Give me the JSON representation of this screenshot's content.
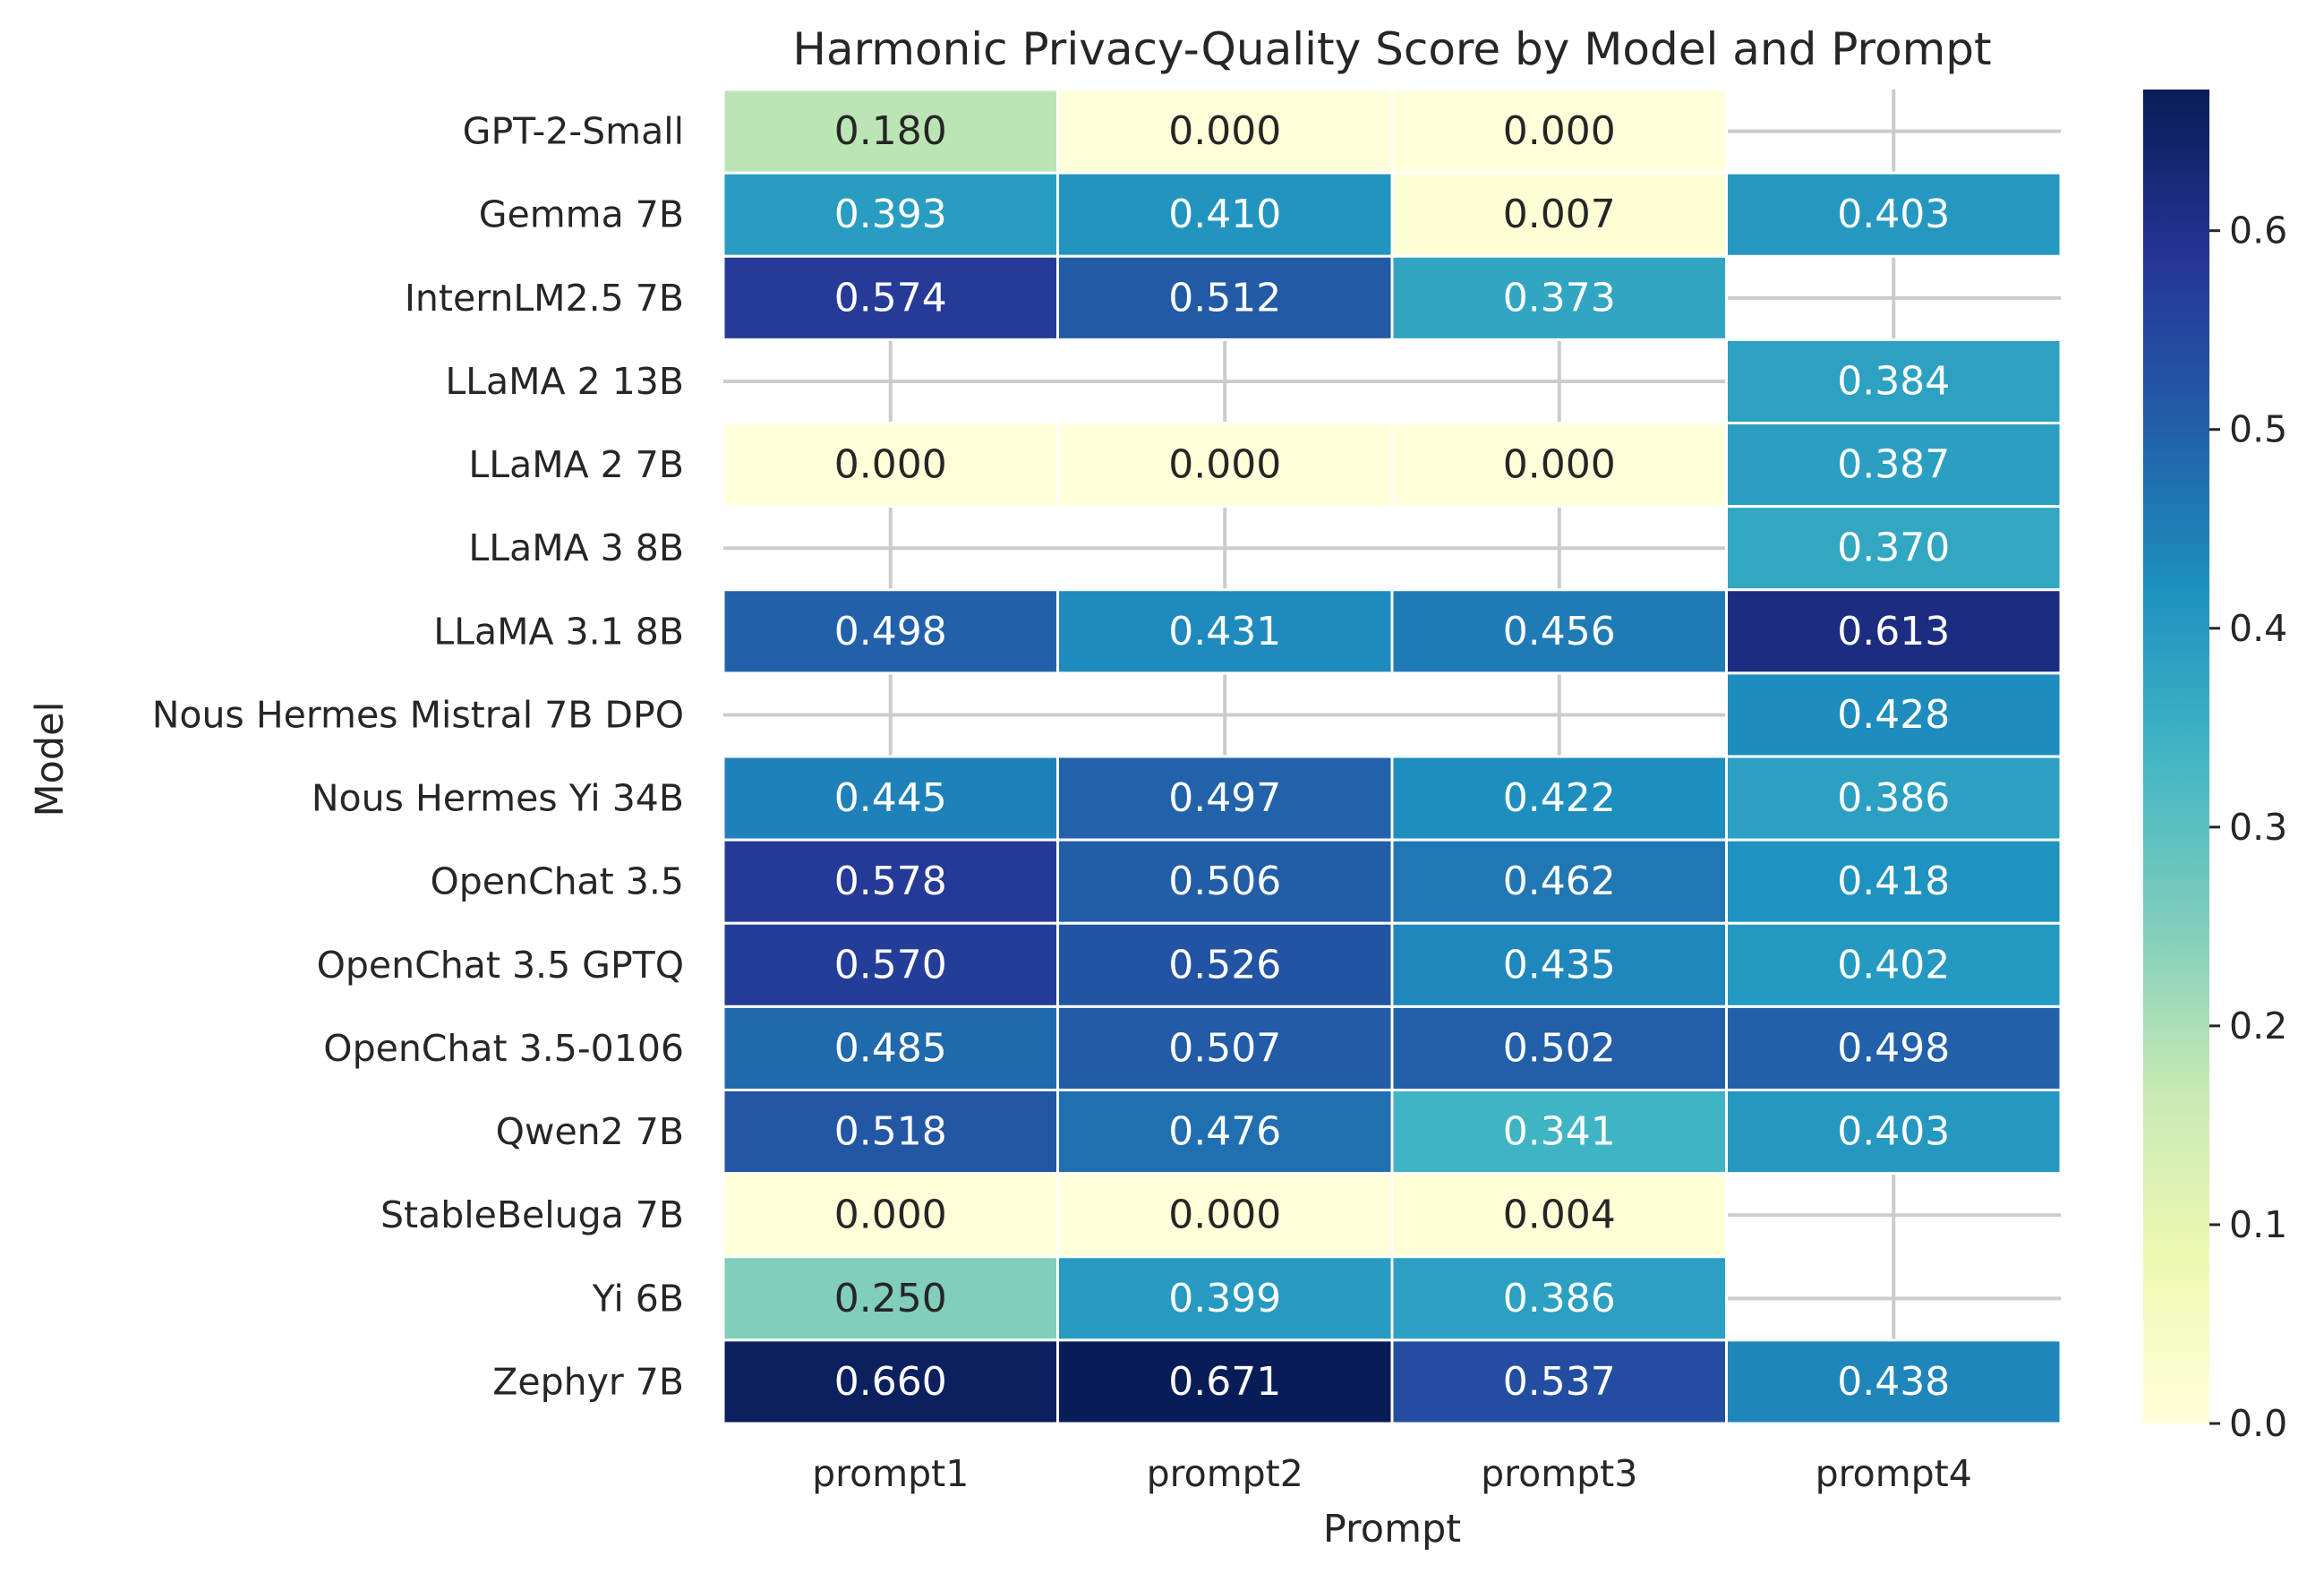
{
  "chart_data": {
    "type": "heatmap",
    "title": "Harmonic Privacy-Quality Score by Model and Prompt",
    "xlabel": "Prompt",
    "ylabel": "Model",
    "x_categories": [
      "prompt1",
      "prompt2",
      "prompt3",
      "prompt4"
    ],
    "y_categories": [
      "GPT-2-Small",
      "Gemma 7B",
      "InternLM2.5 7B",
      "LLaMA 2 13B",
      "LLaMA 2 7B",
      "LLaMA 3 8B",
      "LLaMA 3.1 8B",
      "Nous Hermes Mistral 7B DPO",
      "Nous Hermes Yi 34B",
      "OpenChat 3.5",
      "OpenChat 3.5 GPTQ",
      "OpenChat 3.5-0106",
      "Qwen2 7B",
      "StableBeluga 7B",
      "Yi 6B",
      "Zephyr 7B"
    ],
    "values": [
      [
        0.18,
        0.0,
        0.0,
        null
      ],
      [
        0.393,
        0.41,
        0.007,
        0.403
      ],
      [
        0.574,
        0.512,
        0.373,
        null
      ],
      [
        null,
        null,
        null,
        0.384
      ],
      [
        0.0,
        0.0,
        0.0,
        0.387
      ],
      [
        null,
        null,
        null,
        0.37
      ],
      [
        0.498,
        0.431,
        0.456,
        0.613
      ],
      [
        null,
        null,
        null,
        0.428
      ],
      [
        0.445,
        0.497,
        0.422,
        0.386
      ],
      [
        0.578,
        0.506,
        0.462,
        0.418
      ],
      [
        0.57,
        0.526,
        0.435,
        0.402
      ],
      [
        0.485,
        0.507,
        0.502,
        0.498
      ],
      [
        0.518,
        0.476,
        0.341,
        0.403
      ],
      [
        0.0,
        0.0,
        0.004,
        null
      ],
      [
        0.25,
        0.399,
        0.386,
        null
      ],
      [
        0.66,
        0.671,
        0.537,
        0.438
      ]
    ],
    "value_labels": [
      [
        "0.180",
        "0.000",
        "0.000",
        null
      ],
      [
        "0.393",
        "0.410",
        "0.007",
        "0.403"
      ],
      [
        "0.574",
        "0.512",
        "0.373",
        null
      ],
      [
        null,
        null,
        null,
        "0.384"
      ],
      [
        "0.000",
        "0.000",
        "0.000",
        "0.387"
      ],
      [
        null,
        null,
        null,
        "0.370"
      ],
      [
        "0.498",
        "0.431",
        "0.456",
        "0.613"
      ],
      [
        null,
        null,
        null,
        "0.428"
      ],
      [
        "0.445",
        "0.497",
        "0.422",
        "0.386"
      ],
      [
        "0.578",
        "0.506",
        "0.462",
        "0.418"
      ],
      [
        "0.570",
        "0.526",
        "0.435",
        "0.402"
      ],
      [
        "0.485",
        "0.507",
        "0.502",
        "0.498"
      ],
      [
        "0.518",
        "0.476",
        "0.341",
        "0.403"
      ],
      [
        "0.000",
        "0.000",
        "0.004",
        null
      ],
      [
        "0.250",
        "0.399",
        "0.386",
        null
      ],
      [
        "0.660",
        "0.671",
        "0.537",
        "0.438"
      ]
    ],
    "colormap": "YlGnBu",
    "color_range": [
      0.0,
      0.671
    ],
    "colorbar_ticks": [
      0.0,
      0.1,
      0.2,
      0.3,
      0.4,
      0.5,
      0.6
    ],
    "colorbar_tick_labels": [
      "0.0",
      "0.1",
      "0.2",
      "0.3",
      "0.4",
      "0.5",
      "0.6"
    ],
    "grid": true,
    "missing_cells": "blank with gridlines"
  }
}
